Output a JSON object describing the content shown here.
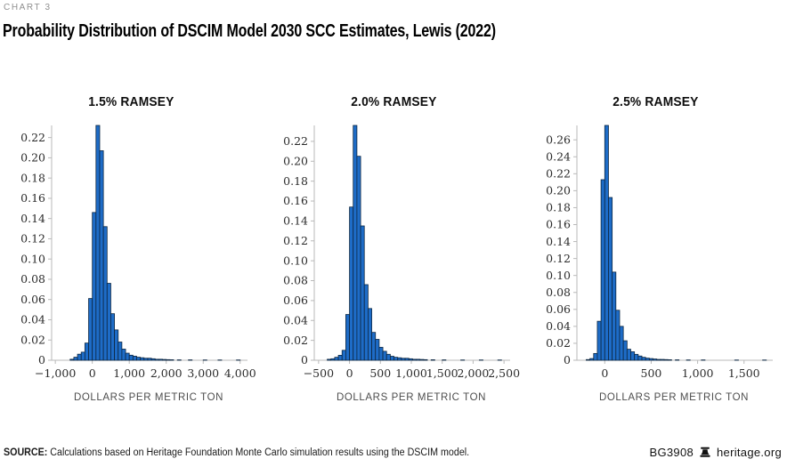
{
  "page": {
    "eyebrow": "CHART 3",
    "title": "Probability Distribution of DSCIM Model 2030 SCC Estimates, Lewis (2022)"
  },
  "footer": {
    "source_label": "SOURCE:",
    "source_text": " Calculations based on Heritage Foundation Monte Carlo simulation results using the DSCIM model.",
    "report_id": "BG3908",
    "brand": "heritage.org",
    "brand_icon": "liberty-bell-icon"
  },
  "colors": {
    "bar_fill": "#1e6cc7",
    "bar_stroke": "#0d2742",
    "axis": "#b9b9b9",
    "tick_text": "#2b2b2b",
    "axis_label": "#4d4d4d"
  },
  "chart_data": [
    {
      "type": "bar",
      "subtype": "histogram",
      "title": "1.5% RAMSEY",
      "xlabel": "DOLLARS PER METRIC TON",
      "ylabel": "",
      "legend": null,
      "grid": false,
      "xlim": [
        -1100,
        4150
      ],
      "ylim": [
        0,
        0.232
      ],
      "bin_width": 100,
      "x_tick_values": [
        -1000,
        0,
        1000,
        2000,
        3000,
        4000
      ],
      "x_tick_labels": [
        "−1,000",
        "0",
        "1,000",
        "2,000",
        "3,000",
        "4,000"
      ],
      "y_tick_values": [
        0,
        0.02,
        0.04,
        0.06,
        0.08,
        0.1,
        0.12,
        0.14,
        0.16,
        0.18,
        0.2,
        0.22
      ],
      "y_tick_labels": [
        "0",
        "0.02",
        "0.04",
        "0.06",
        "0.08",
        "0.10",
        "0.12",
        "0.14",
        "0.16",
        "0.18",
        "0.20",
        "0.22"
      ],
      "bins": [
        [
          -600,
          0.001
        ],
        [
          -500,
          0.003
        ],
        [
          -400,
          0.006
        ],
        [
          -300,
          0.008
        ],
        [
          -200,
          0.017
        ],
        [
          -100,
          0.061
        ],
        [
          0,
          0.146
        ],
        [
          100,
          0.232
        ],
        [
          200,
          0.207
        ],
        [
          300,
          0.132
        ],
        [
          400,
          0.076
        ],
        [
          500,
          0.046
        ],
        [
          600,
          0.03
        ],
        [
          700,
          0.018
        ],
        [
          800,
          0.011
        ],
        [
          900,
          0.007
        ],
        [
          1000,
          0.005
        ],
        [
          1100,
          0.004
        ],
        [
          1200,
          0.003
        ],
        [
          1300,
          0.0025
        ],
        [
          1400,
          0.002
        ],
        [
          1500,
          0.002
        ],
        [
          1600,
          0.0015
        ],
        [
          1700,
          0.001
        ],
        [
          1800,
          0.001
        ],
        [
          1900,
          0.0008
        ],
        [
          2000,
          0.0006
        ],
        [
          2100,
          0.0005
        ],
        [
          2300,
          0.0004
        ],
        [
          2600,
          0.0004
        ],
        [
          3000,
          0.0003
        ],
        [
          3400,
          0.0003
        ],
        [
          3900,
          0.0003
        ]
      ]
    },
    {
      "type": "bar",
      "subtype": "histogram",
      "title": "2.0% RAMSEY",
      "xlabel": "DOLLARS PER METRIC TON",
      "ylabel": "",
      "legend": null,
      "grid": false,
      "xlim": [
        -570,
        2570
      ],
      "ylim": [
        0,
        0.236
      ],
      "bin_width": 60,
      "x_tick_values": [
        -500,
        0,
        500,
        1000,
        1500,
        2000,
        2500
      ],
      "x_tick_labels": [
        "−500",
        "0",
        "500",
        "1,000",
        "1,500",
        "2,000",
        "2,500"
      ],
      "y_tick_values": [
        0,
        0.02,
        0.04,
        0.06,
        0.08,
        0.1,
        0.12,
        0.14,
        0.16,
        0.18,
        0.2,
        0.22
      ],
      "y_tick_labels": [
        "0",
        "0.02",
        "0.04",
        "0.06",
        "0.08",
        "0.10",
        "0.12",
        "0.14",
        "0.16",
        "0.18",
        "0.20",
        "0.22"
      ],
      "bins": [
        [
          -360,
          0.001
        ],
        [
          -300,
          0.0015
        ],
        [
          -240,
          0.003
        ],
        [
          -180,
          0.005
        ],
        [
          -120,
          0.01
        ],
        [
          -60,
          0.046
        ],
        [
          0,
          0.154
        ],
        [
          60,
          0.236
        ],
        [
          120,
          0.205
        ],
        [
          180,
          0.135
        ],
        [
          240,
          0.076
        ],
        [
          300,
          0.052
        ],
        [
          360,
          0.028
        ],
        [
          420,
          0.021
        ],
        [
          480,
          0.013
        ],
        [
          540,
          0.009
        ],
        [
          600,
          0.006
        ],
        [
          660,
          0.004
        ],
        [
          720,
          0.003
        ],
        [
          780,
          0.0025
        ],
        [
          840,
          0.002
        ],
        [
          900,
          0.002
        ],
        [
          960,
          0.0015
        ],
        [
          1020,
          0.001
        ],
        [
          1080,
          0.001
        ],
        [
          1140,
          0.0008
        ],
        [
          1200,
          0.0006
        ],
        [
          1320,
          0.0005
        ],
        [
          1500,
          0.0004
        ],
        [
          1800,
          0.0003
        ],
        [
          2100,
          0.0003
        ],
        [
          2400,
          0.0003
        ]
      ]
    },
    {
      "type": "bar",
      "subtype": "histogram",
      "title": "2.5% RAMSEY",
      "xlabel": "DOLLARS PER METRIC TON",
      "ylabel": "",
      "legend": null,
      "grid": false,
      "xlim": [
        -300,
        1790
      ],
      "ylim": [
        0,
        0.277
      ],
      "bin_width": 40,
      "x_tick_values": [
        0,
        500,
        1000,
        1500
      ],
      "x_tick_labels": [
        "0",
        "500",
        "1,000",
        "1,500"
      ],
      "y_tick_values": [
        0,
        0.02,
        0.04,
        0.06,
        0.08,
        0.1,
        0.12,
        0.14,
        0.16,
        0.18,
        0.2,
        0.22,
        0.24,
        0.26
      ],
      "y_tick_labels": [
        "0",
        "0.02",
        "0.04",
        "0.06",
        "0.08",
        "0.10",
        "0.12",
        "0.14",
        "0.16",
        "0.18",
        "0.20",
        "0.22",
        "0.24",
        "0.26"
      ],
      "bins": [
        [
          -200,
          0.0008
        ],
        [
          -160,
          0.002
        ],
        [
          -120,
          0.008
        ],
        [
          -80,
          0.046
        ],
        [
          -40,
          0.213
        ],
        [
          0,
          0.277
        ],
        [
          40,
          0.192
        ],
        [
          80,
          0.104
        ],
        [
          120,
          0.059
        ],
        [
          160,
          0.04
        ],
        [
          200,
          0.023
        ],
        [
          240,
          0.013
        ],
        [
          280,
          0.01
        ],
        [
          320,
          0.007
        ],
        [
          360,
          0.005
        ],
        [
          400,
          0.0035
        ],
        [
          440,
          0.0025
        ],
        [
          480,
          0.002
        ],
        [
          520,
          0.0015
        ],
        [
          560,
          0.001
        ],
        [
          600,
          0.001
        ],
        [
          640,
          0.0008
        ],
        [
          680,
          0.0006
        ],
        [
          760,
          0.0005
        ],
        [
          880,
          0.0004
        ],
        [
          1040,
          0.0004
        ],
        [
          1400,
          0.0003
        ],
        [
          1700,
          0.0003
        ]
      ]
    }
  ]
}
